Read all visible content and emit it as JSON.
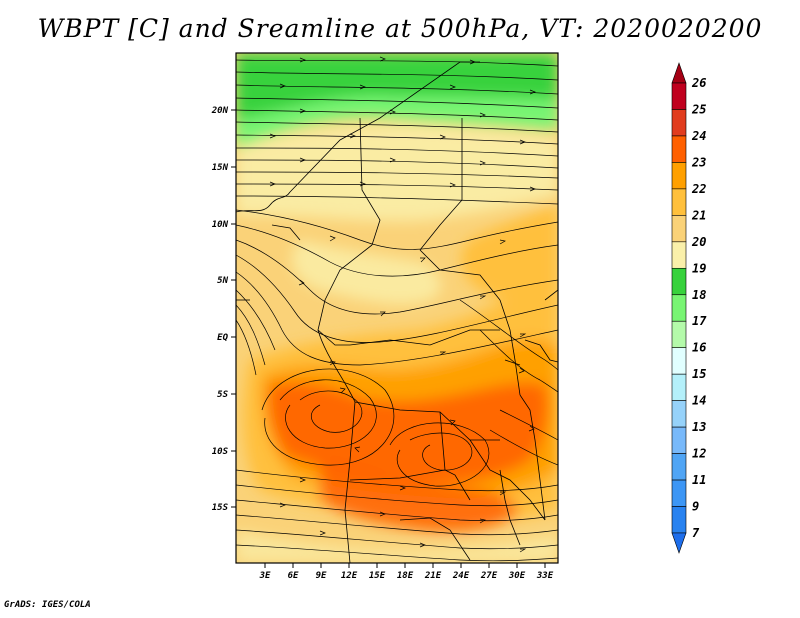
{
  "title": "WBPT [C] and Sreamline at 500hPa, VT: 2020020200",
  "footer": "GrADS: IGES/COLA",
  "map": {
    "lat_labels": [
      "20N",
      "15N",
      "10N",
      "5N",
      "EQ",
      "5S",
      "10S",
      "15S"
    ],
    "lon_labels": [
      "3E",
      "6E",
      "9E",
      "12E",
      "15E",
      "18E",
      "21E",
      "24E",
      "27E",
      "30E",
      "33E"
    ]
  },
  "colorbar": {
    "levels": [
      "7",
      "9",
      "11",
      "12",
      "13",
      "14",
      "15",
      "16",
      "17",
      "18",
      "19",
      "20",
      "21",
      "22",
      "23",
      "24",
      "25",
      "26"
    ],
    "colors": [
      "#1e6eeb",
      "#2882f0",
      "#3c96f5",
      "#50a5f5",
      "#78b9fa",
      "#96d2fa",
      "#b4f0fa",
      "#e1ffff",
      "#b4faaa",
      "#78f573",
      "#37d23c",
      "#faf0aa",
      "#fad278",
      "#ffc03c",
      "#ffa000",
      "#ff6000",
      "#e13c1e",
      "#c0001e",
      "#a50014"
    ]
  }
}
